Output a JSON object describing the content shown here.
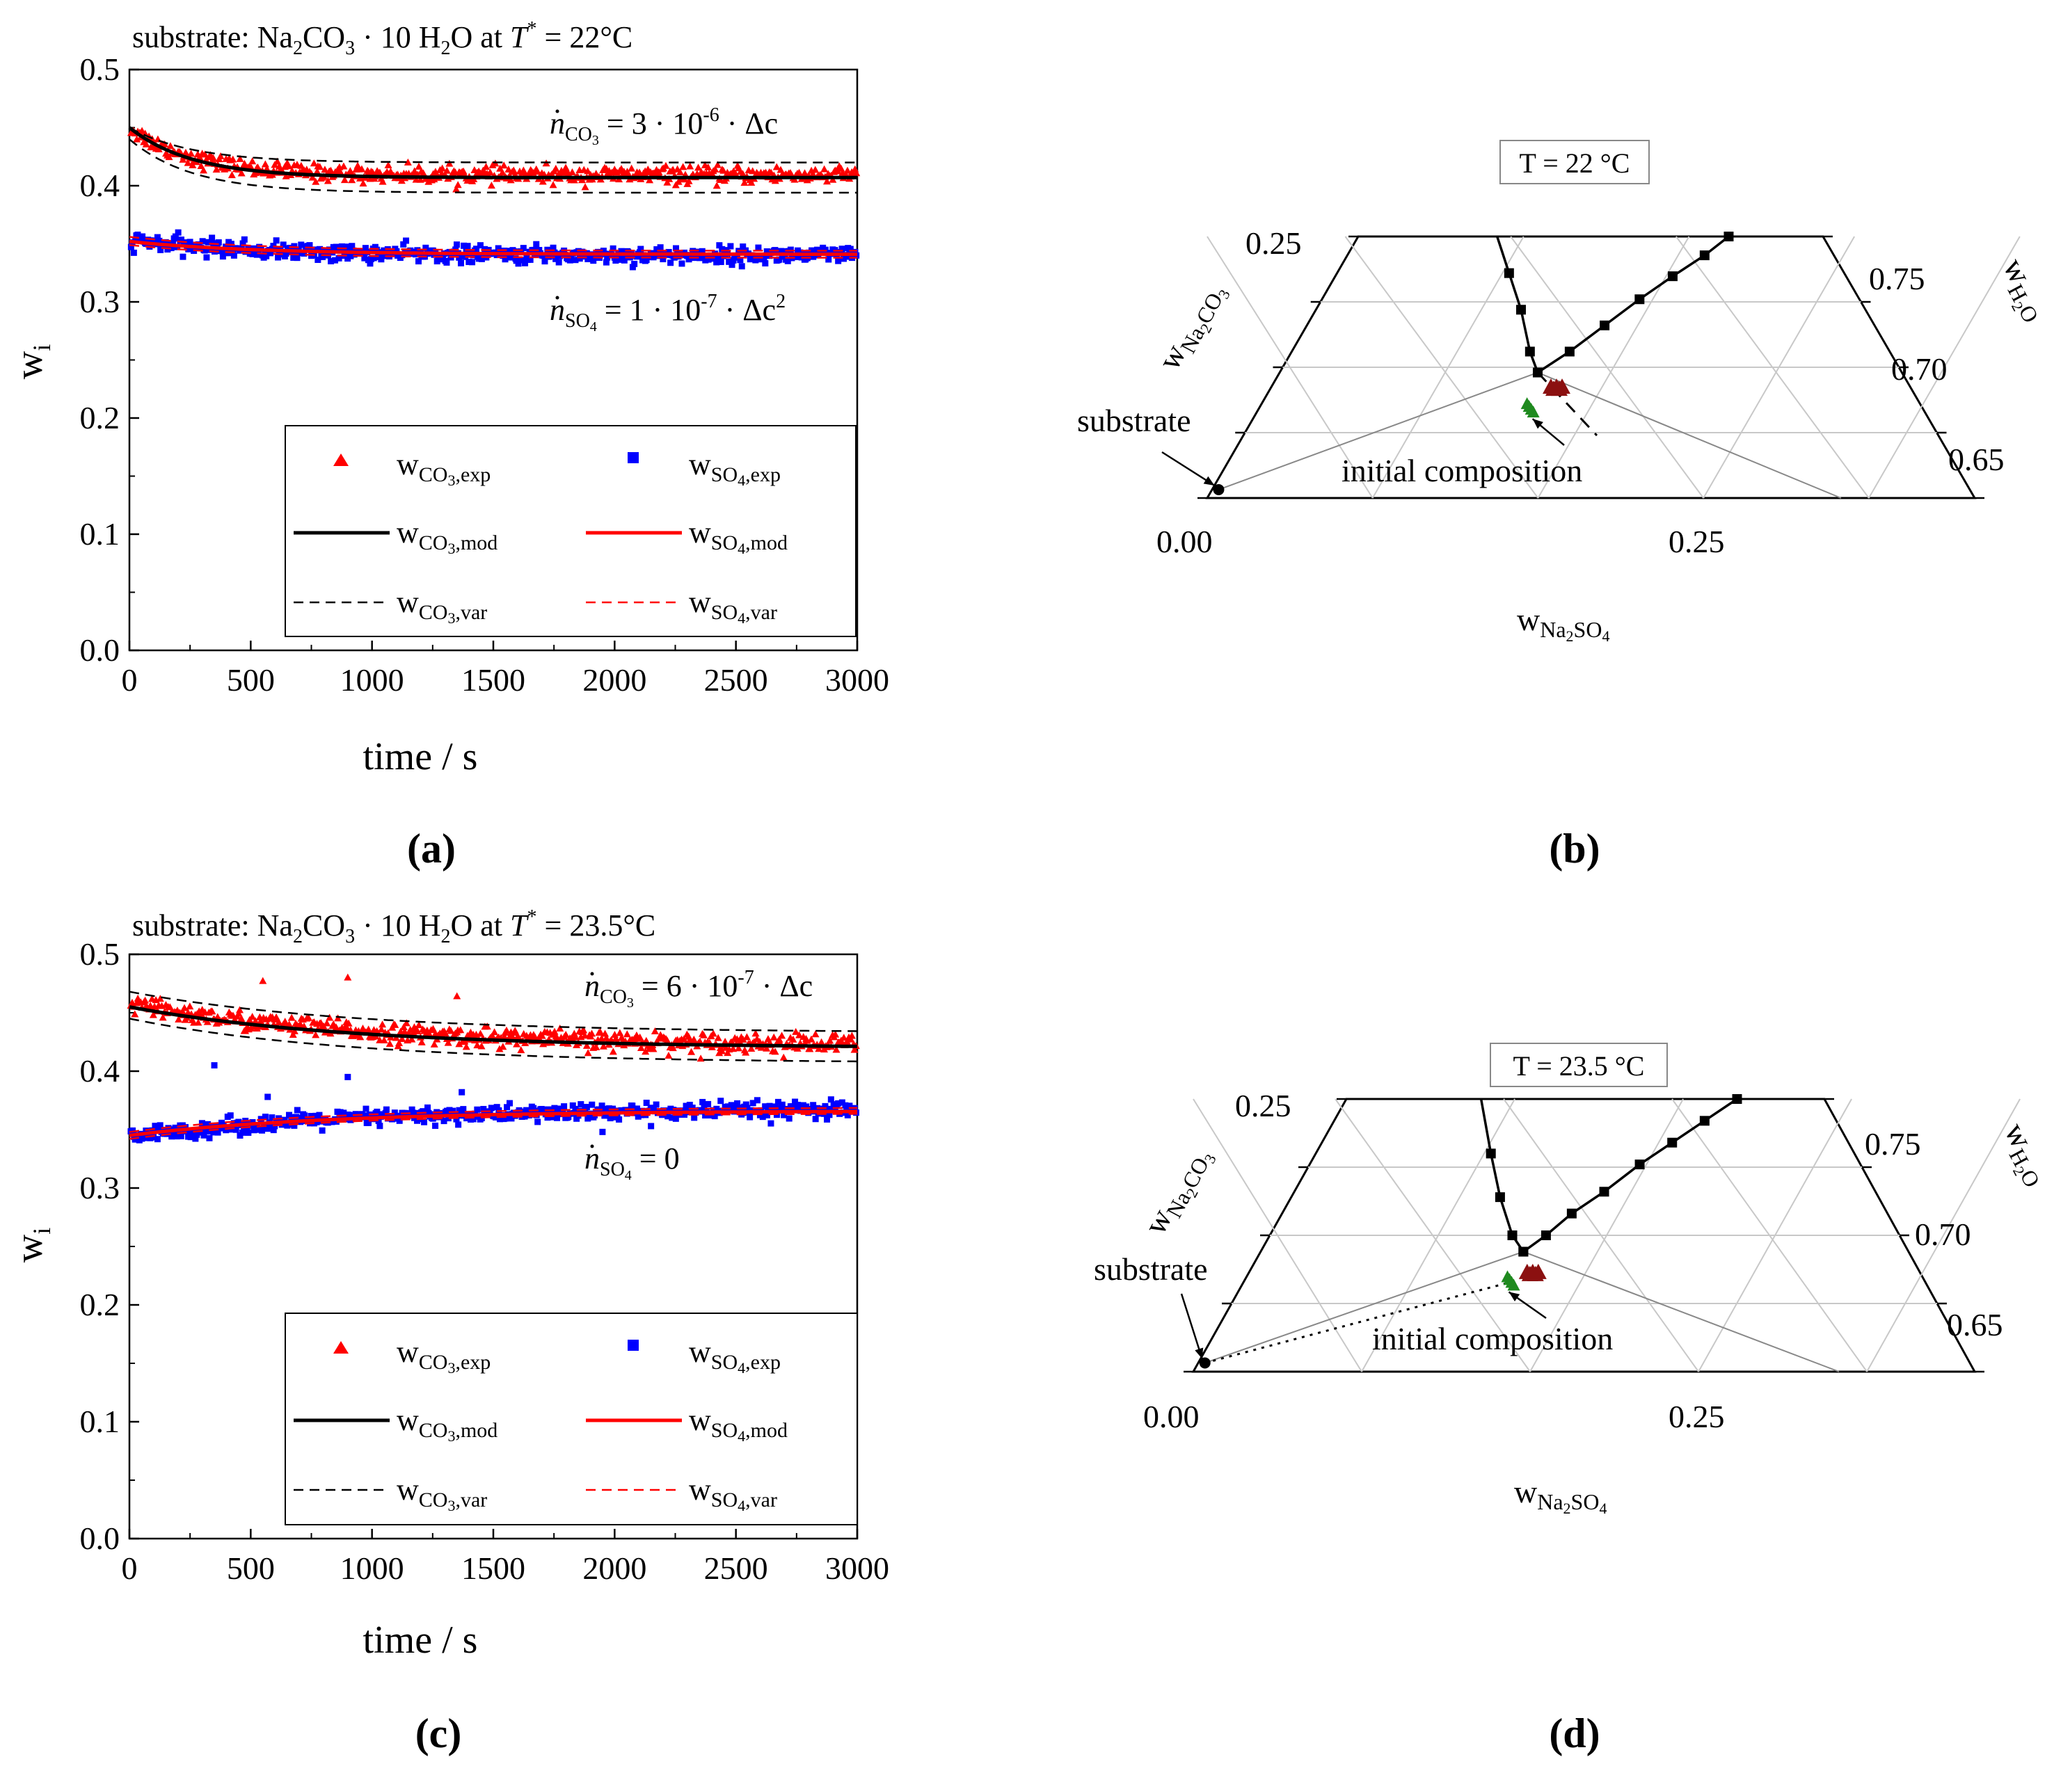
{
  "panels": {
    "a": {
      "label": "(a)"
    },
    "b": {
      "label": "(b)"
    },
    "c": {
      "label": "(c)"
    },
    "d": {
      "label": "(d)"
    }
  },
  "colors": {
    "co3_exp": "#ff0000",
    "so4_exp": "#0000ff",
    "co3_mod": "#000000",
    "so4_mod": "#ff0000",
    "ternary_curve": "#000000",
    "ternary_exp_marker": "#8b1010",
    "ternary_initial_marker": "#1f8a1f"
  },
  "legend": {
    "w": "w",
    "sub_co3": "CO",
    "sub_so4": "SO",
    "sub_3": "3",
    "sub_4": "4",
    "exp": ",exp",
    "mod": ",mod",
    "var": ",var"
  },
  "chart_data": [
    {
      "panel": "a",
      "type": "scatter",
      "title": {
        "pre": "substrate: Na",
        "s1": "2",
        "mid": "CO",
        "s2": "3",
        "post": " · 10 H",
        "s3": "2",
        "post2": "O at ",
        "T": "T",
        "star": "*",
        "end": " = 22°C"
      },
      "xlabel": "time / s",
      "ylabel": {
        "w": "w",
        "i": "i"
      },
      "xlim": [
        0,
        3000
      ],
      "ylim": [
        0,
        0.5
      ],
      "xticks": [
        "0",
        "500",
        "1000",
        "1500",
        "2000",
        "2500",
        "3000"
      ],
      "yticks": [
        "0.0",
        "0.1",
        "0.2",
        "0.3",
        "0.4",
        "0.5"
      ],
      "annotation_co3": {
        "n": "n",
        "sub": "CO",
        "subsub": "3",
        "eq": " = 3 · 10",
        "exp": "-6",
        "tail": " · Δc"
      },
      "annotation_so4": {
        "n": "n",
        "sub": "SO",
        "subsub": "4",
        "eq": " = 1 · 10",
        "exp": "-7",
        "tail": " · Δc",
        "exp2": "2"
      },
      "series": [
        {
          "name": "w_CO3,exp",
          "kind": "triangles",
          "model": {
            "start": 0.45,
            "end": 0.409,
            "tau": 260
          },
          "noise": 0.006
        },
        {
          "name": "w_SO4,exp",
          "kind": "squares",
          "model": {
            "start": 0.353,
            "end": 0.34,
            "tau": 500
          },
          "noise": 0.006
        },
        {
          "name": "w_CO3,mod",
          "kind": "line",
          "model": {
            "start": 0.45,
            "end": 0.407,
            "tau": 260
          }
        },
        {
          "name": "w_SO4,mod",
          "kind": "line",
          "model": {
            "start": 0.352,
            "end": 0.341,
            "tau": 500
          }
        },
        {
          "name": "w_CO3,var upper",
          "kind": "dash",
          "model": {
            "start": 0.45,
            "end": 0.42,
            "tau": 260
          }
        },
        {
          "name": "w_CO3,var lower",
          "kind": "dash",
          "model": {
            "start": 0.44,
            "end": 0.394,
            "tau": 260
          }
        },
        {
          "name": "w_SO4,var upper",
          "kind": "dash-red",
          "model": {
            "start": 0.356,
            "end": 0.344,
            "tau": 500
          }
        },
        {
          "name": "w_SO4,var lower",
          "kind": "dash-red",
          "model": {
            "start": 0.349,
            "end": 0.338,
            "tau": 500
          }
        }
      ],
      "outliers": []
    },
    {
      "panel": "c",
      "type": "scatter",
      "title": {
        "pre": "substrate: Na",
        "s1": "2",
        "mid": "CO",
        "s2": "3",
        "post": " · 10 H",
        "s3": "2",
        "post2": "O at ",
        "T": "T",
        "star": "*",
        "end": " = 23.5°C"
      },
      "xlabel": "time / s",
      "ylabel": {
        "w": "w",
        "i": "i"
      },
      "xlim": [
        0,
        3000
      ],
      "ylim": [
        0,
        0.5
      ],
      "xticks": [
        "0",
        "500",
        "1000",
        "1500",
        "2000",
        "2500",
        "3000"
      ],
      "yticks": [
        "0.0",
        "0.1",
        "0.2",
        "0.3",
        "0.4",
        "0.5"
      ],
      "annotation_co3": {
        "n": "n",
        "sub": "CO",
        "subsub": "3",
        "eq": " = 6 · 10",
        "exp": "-7",
        "tail": " · Δc"
      },
      "annotation_so4": {
        "n": "n",
        "sub": "SO",
        "subsub": "4",
        "eq": " = 0",
        "exp": "",
        "tail": "",
        "exp2": ""
      },
      "series": [
        {
          "name": "w_CO3,exp",
          "kind": "triangles",
          "model": {
            "start": 0.457,
            "end": 0.422,
            "tau": 900
          },
          "noise": 0.007
        },
        {
          "name": "w_SO4,exp",
          "kind": "squares",
          "model": {
            "start": 0.343,
            "end": 0.367,
            "tau": 800
          },
          "noise": 0.006
        },
        {
          "name": "w_CO3,mod",
          "kind": "line",
          "model": {
            "start": 0.455,
            "end": 0.42,
            "tau": 900
          }
        },
        {
          "name": "w_SO4,mod",
          "kind": "line",
          "model": {
            "start": 0.345,
            "end": 0.366,
            "tau": 800
          }
        },
        {
          "name": "w_CO3,var upper",
          "kind": "dash",
          "model": {
            "start": 0.468,
            "end": 0.433,
            "tau": 900
          }
        },
        {
          "name": "w_CO3,var lower",
          "kind": "dash",
          "model": {
            "start": 0.445,
            "end": 0.407,
            "tau": 900
          }
        },
        {
          "name": "w_SO4,var upper",
          "kind": "dash-red",
          "model": {
            "start": 0.348,
            "end": 0.369,
            "tau": 800
          }
        },
        {
          "name": "w_SO4,var lower",
          "kind": "dash-red",
          "model": {
            "start": 0.342,
            "end": 0.364,
            "tau": 800
          }
        }
      ],
      "outliers": [
        {
          "series": "co3",
          "x": 550,
          "y": 0.477
        },
        {
          "series": "co3",
          "x": 900,
          "y": 0.48
        },
        {
          "series": "co3",
          "x": 1350,
          "y": 0.464
        },
        {
          "series": "so4",
          "x": 350,
          "y": 0.405
        },
        {
          "series": "so4",
          "x": 570,
          "y": 0.378
        },
        {
          "series": "so4",
          "x": 900,
          "y": 0.395
        },
        {
          "series": "so4",
          "x": 1370,
          "y": 0.382
        },
        {
          "series": "so4",
          "x": 2150,
          "y": 0.353
        },
        {
          "series": "so4",
          "x": 1950,
          "y": 0.348
        }
      ]
    },
    {
      "panel": "b",
      "type": "ternary",
      "temperature_label": "T = 22 °C",
      "axis_top": {
        "w": "w",
        "sub1": "Na",
        "sub2": "2",
        "sub3": "CO",
        "sub4": "3"
      },
      "axis_right": {
        "w": "w",
        "sub1": "H",
        "sub2": "2",
        "sub3": "O"
      },
      "axis_bottom": {
        "w": "w",
        "sub1": "Na",
        "sub2": "2",
        "sub3": "SO",
        "sub4": "4"
      },
      "left_ticks": [
        "0.25"
      ],
      "right_ticks": [
        "0.75",
        "0.70",
        "0.65"
      ],
      "bottom_ticks": [
        "0.00",
        "0.25"
      ],
      "substrate_label": "substrate",
      "initial_label": "initial composition",
      "co3_branch": [
        [
          0.105,
          0.25
        ],
        [
          0.13,
          0.215
        ],
        [
          0.155,
          0.18
        ],
        [
          0.18,
          0.14
        ],
        [
          0.195,
          0.12
        ]
      ],
      "so4_branch": [
        [
          0.195,
          0.12
        ],
        [
          0.21,
          0.14
        ],
        [
          0.225,
          0.165
        ],
        [
          0.24,
          0.19
        ],
        [
          0.255,
          0.212
        ],
        [
          0.27,
          0.232
        ],
        [
          0.28,
          0.25
        ]
      ],
      "exp_point": [
        0.215,
        0.105
      ],
      "initial_point": [
        0.205,
        0.085
      ]
    },
    {
      "panel": "d",
      "type": "ternary",
      "temperature_label": "T = 23.5 °C",
      "axis_top": {
        "w": "w",
        "sub1": "Na",
        "sub2": "2",
        "sub3": "CO",
        "sub4": "3"
      },
      "axis_right": {
        "w": "w",
        "sub1": "H",
        "sub2": "2",
        "sub3": "O"
      },
      "axis_bottom": {
        "w": "w",
        "sub1": "Na",
        "sub2": "2",
        "sub3": "SO",
        "sub4": "4"
      },
      "left_ticks": [
        "0.25"
      ],
      "right_ticks": [
        "0.75",
        "0.70",
        "0.65"
      ],
      "bottom_ticks": [
        "0.00",
        "0.25"
      ],
      "substrate_label": "substrate",
      "initial_label": "initial composition",
      "co3_branch": [
        [
          0.1,
          0.25
        ],
        [
          0.13,
          0.2
        ],
        [
          0.155,
          0.16
        ],
        [
          0.18,
          0.125
        ],
        [
          0.195,
          0.11
        ]
      ],
      "so4_branch": [
        [
          0.195,
          0.11
        ],
        [
          0.205,
          0.125
        ],
        [
          0.215,
          0.145
        ],
        [
          0.23,
          0.165
        ],
        [
          0.245,
          0.19
        ],
        [
          0.26,
          0.21
        ],
        [
          0.275,
          0.23
        ],
        [
          0.29,
          0.25
        ]
      ],
      "exp_point": [
        0.21,
        0.09
      ],
      "initial_point": [
        0.198,
        0.082
      ]
    }
  ]
}
